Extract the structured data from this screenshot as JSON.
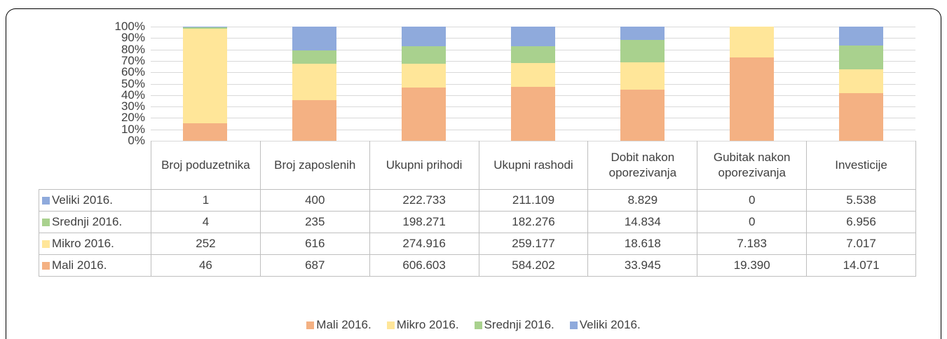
{
  "chart_data": {
    "type": "stacked_bar_100",
    "categories": [
      "Broj poduzetnika",
      "Broj zaposlenih",
      "Ukupni prihodi",
      "Ukupni rashodi",
      "Dobit nakon oporezivanja",
      "Gubitak nakon oporezivanja",
      "Investicije"
    ],
    "series": [
      {
        "name": "Mali 2016.",
        "color": "#f4b183",
        "values": [
          46,
          687,
          606603,
          584202,
          33945,
          19390,
          14071
        ],
        "value_labels": [
          "46",
          "687",
          "606.603",
          "584.202",
          "33.945",
          "19.390",
          "14.071"
        ]
      },
      {
        "name": "Mikro 2016.",
        "color": "#ffe699",
        "values": [
          252,
          616,
          274916,
          259177,
          18618,
          7183,
          7017
        ],
        "value_labels": [
          "252",
          "616",
          "274.916",
          "259.177",
          "18.618",
          "7.183",
          "7.017"
        ]
      },
      {
        "name": "Srednji 2016.",
        "color": "#a9d18e",
        "values": [
          4,
          235,
          198271,
          182276,
          14834,
          0,
          6956
        ],
        "value_labels": [
          "4",
          "235",
          "198.271",
          "182.276",
          "14.834",
          "0",
          "6.956"
        ]
      },
      {
        "name": "Veliki 2016.",
        "color": "#8faadc",
        "values": [
          1,
          400,
          222733,
          211109,
          8829,
          0,
          5538
        ],
        "value_labels": [
          "1",
          "400",
          "222.733",
          "211.109",
          "8.829",
          "0",
          "5.538"
        ]
      }
    ],
    "ylim": [
      0,
      100
    ],
    "yticks": [
      {
        "value": 0,
        "label": "0%"
      },
      {
        "value": 10,
        "label": "10%"
      },
      {
        "value": 20,
        "label": "20%"
      },
      {
        "value": 30,
        "label": "30%"
      },
      {
        "value": 40,
        "label": "40%"
      },
      {
        "value": 50,
        "label": "50%"
      },
      {
        "value": 60,
        "label": "60%"
      },
      {
        "value": 70,
        "label": "70%"
      },
      {
        "value": 80,
        "label": "80%"
      },
      {
        "value": 90,
        "label": "90%"
      },
      {
        "value": 100,
        "label": "100%"
      }
    ],
    "grid": true,
    "legend": "bottom"
  }
}
